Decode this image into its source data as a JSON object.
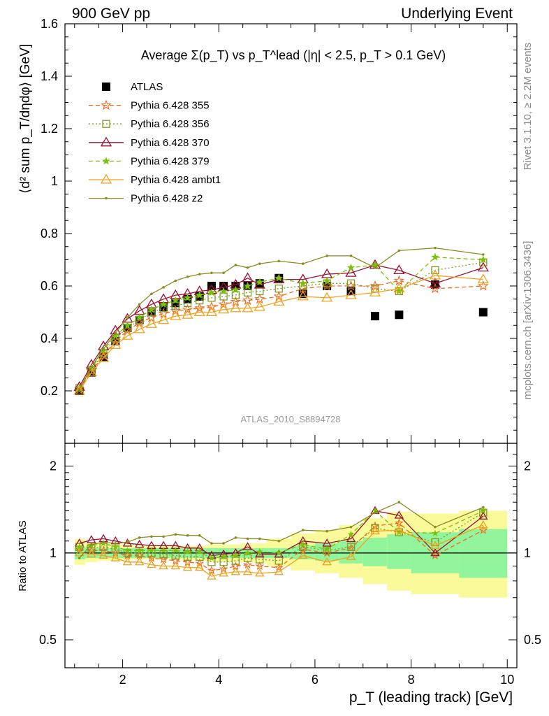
{
  "header": {
    "left": "900 GeV pp",
    "right": "Underlying Event",
    "plot_title": "Average Σ(p_T) vs p_T^lead (|η| < 2.5, p_T > 0.1 GeV)",
    "watermark": "ATLAS_2010_S8894728",
    "side_top": "Rivet 3.1.10, ≥ 2.2M events",
    "side_bottom": "mcplots.cern.ch [arXiv:1306.3436]"
  },
  "chart_data": [
    {
      "type": "scatter",
      "title": "Average Σ(p_T) vs p_T^lead (|η| < 2.5, p_T > 0.1 GeV)",
      "xlabel": "p_T (leading track) [GeV]",
      "ylabel": "⟨d² sum p_T/dηdφ⟩ [GeV]",
      "xlim": [
        0.8,
        10.2
      ],
      "ylim": [
        0,
        1.6
      ],
      "yticks": [
        0.2,
        0.4,
        0.6,
        0.8,
        1,
        1.2,
        1.4,
        1.6
      ],
      "ytick_labels": [
        "0.2",
        "0.4",
        "0.6",
        "0.8",
        "1",
        "1.2",
        "1.4",
        "1.6"
      ],
      "x": [
        1.1,
        1.35,
        1.6,
        1.85,
        2.1,
        2.35,
        2.6,
        2.85,
        3.1,
        3.35,
        3.6,
        3.85,
        4.1,
        4.35,
        4.6,
        4.85,
        5.25,
        5.75,
        6.25,
        6.75,
        7.25,
        7.75,
        8.5,
        9.5
      ],
      "legend_position": "top-left",
      "series": [
        {
          "name": "ATLAS",
          "color": "#000000",
          "marker": "square",
          "line": "none",
          "values": [
            0.2,
            0.27,
            0.33,
            0.39,
            0.44,
            0.47,
            0.5,
            0.52,
            0.535,
            0.55,
            0.56,
            0.6,
            0.6,
            0.6,
            0.6,
            0.61,
            0.63,
            0.57,
            0.6,
            0.58,
            0.485,
            0.49,
            0.605,
            0.5
          ]
        },
        {
          "name": "Pythia 6.428 355",
          "color": "#ee6a1e",
          "marker": "star",
          "line": "dashed",
          "values": [
            0.205,
            0.275,
            0.335,
            0.39,
            0.43,
            0.46,
            0.48,
            0.495,
            0.505,
            0.51,
            0.515,
            0.52,
            0.53,
            0.54,
            0.545,
            0.55,
            0.56,
            0.59,
            0.6,
            0.6,
            0.6,
            0.62,
            0.59,
            0.6
          ]
        },
        {
          "name": "Pythia 6.428 356",
          "color": "#7f9a25",
          "marker": "open-square",
          "line": "dotted",
          "values": [
            0.21,
            0.28,
            0.345,
            0.4,
            0.44,
            0.47,
            0.5,
            0.515,
            0.525,
            0.535,
            0.545,
            0.555,
            0.56,
            0.565,
            0.575,
            0.58,
            0.59,
            0.6,
            0.61,
            0.61,
            0.59,
            0.58,
            0.66,
            0.69
          ]
        },
        {
          "name": "Pythia 6.428 370",
          "color": "#9b1030",
          "marker": "open-triangle",
          "line": "solid",
          "values": [
            0.215,
            0.3,
            0.37,
            0.43,
            0.475,
            0.505,
            0.53,
            0.55,
            0.565,
            0.57,
            0.58,
            0.585,
            0.595,
            0.605,
            0.63,
            0.605,
            0.625,
            0.625,
            0.645,
            0.65,
            0.68,
            0.66,
            0.61,
            0.67
          ]
        },
        {
          "name": "Pythia 6.428 379",
          "color": "#7ac10a",
          "marker": "small-star",
          "line": "dashed",
          "values": [
            0.21,
            0.285,
            0.355,
            0.41,
            0.45,
            0.48,
            0.51,
            0.53,
            0.545,
            0.555,
            0.565,
            0.575,
            0.58,
            0.585,
            0.6,
            0.615,
            0.63,
            0.61,
            0.62,
            0.67,
            0.68,
            0.58,
            0.71,
            0.7
          ]
        },
        {
          "name": "Pythia 6.428 ambt1",
          "color": "#f2a21c",
          "marker": "open-triangle",
          "line": "solid",
          "values": [
            0.2,
            0.27,
            0.325,
            0.375,
            0.41,
            0.435,
            0.455,
            0.47,
            0.485,
            0.49,
            0.5,
            0.5,
            0.51,
            0.515,
            0.515,
            0.52,
            0.54,
            0.56,
            0.555,
            0.565,
            0.575,
            0.59,
            0.64,
            0.625
          ]
        },
        {
          "name": "Pythia 6.428 z2",
          "color": "#8b8b1e",
          "marker": "dot",
          "line": "solid",
          "values": [
            0.205,
            0.29,
            0.36,
            0.42,
            0.48,
            0.53,
            0.57,
            0.595,
            0.62,
            0.635,
            0.645,
            0.65,
            0.65,
            0.68,
            0.67,
            0.685,
            0.695,
            0.685,
            0.715,
            0.715,
            0.67,
            0.735,
            0.745,
            0.72
          ]
        }
      ]
    },
    {
      "type": "line",
      "ylabel": "Ratio to ATLAS",
      "xlabel": "p_T (leading track) [GeV]",
      "xlim": [
        0.8,
        10.2
      ],
      "ylim": [
        0.4,
        2.4
      ],
      "y_scale": "log",
      "xticks": [
        2,
        4,
        6,
        8,
        10
      ],
      "xtick_labels": [
        "2",
        "4",
        "6",
        "8",
        "10"
      ],
      "yticks": [
        0.5,
        1,
        2
      ],
      "ytick_labels": [
        "0.5",
        "1",
        "2"
      ],
      "bands": {
        "edges": [
          1.0,
          1.225,
          1.475,
          1.725,
          1.975,
          2.225,
          2.475,
          2.725,
          2.975,
          3.225,
          3.475,
          3.725,
          3.975,
          4.225,
          4.475,
          4.725,
          5.0,
          5.5,
          6.0,
          6.5,
          7.0,
          7.5,
          8.0,
          9.0,
          10.0
        ],
        "inner": [
          [
            0.95,
            1.05
          ],
          [
            0.96,
            1.04
          ],
          [
            0.96,
            1.04
          ],
          [
            0.96,
            1.04
          ],
          [
            0.96,
            1.04
          ],
          [
            0.96,
            1.04
          ],
          [
            0.96,
            1.04
          ],
          [
            0.96,
            1.04
          ],
          [
            0.96,
            1.04
          ],
          [
            0.96,
            1.04
          ],
          [
            0.96,
            1.04
          ],
          [
            0.96,
            1.04
          ],
          [
            0.96,
            1.04
          ],
          [
            0.96,
            1.04
          ],
          [
            0.96,
            1.04
          ],
          [
            0.96,
            1.04
          ],
          [
            0.96,
            1.04
          ],
          [
            0.95,
            1.06
          ],
          [
            0.94,
            1.08
          ],
          [
            0.92,
            1.1
          ],
          [
            0.9,
            1.13
          ],
          [
            0.88,
            1.16
          ],
          [
            0.85,
            1.18
          ],
          [
            0.82,
            1.21
          ]
        ],
        "outer": [
          [
            0.91,
            1.12
          ],
          [
            0.93,
            1.09
          ],
          [
            0.94,
            1.08
          ],
          [
            0.94,
            1.07
          ],
          [
            0.95,
            1.07
          ],
          [
            0.95,
            1.06
          ],
          [
            0.95,
            1.06
          ],
          [
            0.95,
            1.06
          ],
          [
            0.95,
            1.06
          ],
          [
            0.94,
            1.06
          ],
          [
            0.94,
            1.06
          ],
          [
            0.93,
            1.07
          ],
          [
            0.93,
            1.07
          ],
          [
            0.93,
            1.07
          ],
          [
            0.93,
            1.08
          ],
          [
            0.92,
            1.08
          ],
          [
            0.9,
            1.12
          ],
          [
            0.87,
            1.17
          ],
          [
            0.85,
            1.2
          ],
          [
            0.82,
            1.25
          ],
          [
            0.78,
            1.32
          ],
          [
            0.74,
            1.39
          ],
          [
            0.72,
            1.37
          ],
          [
            0.7,
            1.4
          ]
        ]
      },
      "series": [
        {
          "name": "Pythia 6.428 355",
          "color": "#ee6a1e",
          "values": [
            1.03,
            1.02,
            1.02,
            1.0,
            0.98,
            0.98,
            0.96,
            0.95,
            0.94,
            0.93,
            0.92,
            0.87,
            0.88,
            0.9,
            0.91,
            0.9,
            0.89,
            1.03,
            1.0,
            1.04,
            1.24,
            1.27,
            0.98,
            1.2
          ]
        },
        {
          "name": "Pythia 6.428 356",
          "color": "#7f9a25",
          "values": [
            1.05,
            1.04,
            1.05,
            1.03,
            1.0,
            1.0,
            1.0,
            0.99,
            0.98,
            0.97,
            0.97,
            0.93,
            0.93,
            0.94,
            0.96,
            0.95,
            0.94,
            1.05,
            1.02,
            1.05,
            1.22,
            1.18,
            1.09,
            1.38
          ]
        },
        {
          "name": "Pythia 6.428 370",
          "color": "#9b1030",
          "values": [
            1.08,
            1.11,
            1.12,
            1.1,
            1.08,
            1.07,
            1.06,
            1.06,
            1.06,
            1.04,
            1.04,
            0.98,
            0.99,
            1.0,
            1.05,
            0.99,
            0.99,
            1.1,
            1.08,
            1.12,
            1.4,
            1.35,
            1.0,
            1.34
          ]
        },
        {
          "name": "Pythia 6.428 379",
          "color": "#7ac10a",
          "values": [
            1.05,
            1.06,
            1.08,
            1.05,
            1.02,
            1.02,
            1.02,
            1.02,
            1.02,
            1.01,
            1.01,
            0.96,
            0.97,
            0.98,
            1.0,
            1.01,
            1.0,
            1.07,
            1.03,
            1.16,
            1.4,
            1.18,
            1.17,
            1.4
          ]
        },
        {
          "name": "Pythia 6.428 ambt1",
          "color": "#f2a21c",
          "values": [
            1.0,
            0.99,
            0.98,
            0.96,
            0.93,
            0.93,
            0.91,
            0.9,
            0.9,
            0.89,
            0.89,
            0.83,
            0.85,
            0.86,
            0.86,
            0.85,
            0.86,
            0.98,
            0.93,
            0.97,
            1.19,
            1.2,
            1.06,
            1.25
          ]
        },
        {
          "name": "Pythia 6.428 z2",
          "color": "#8b8b1e",
          "values": [
            0.96,
            1.07,
            1.09,
            1.08,
            1.09,
            1.13,
            1.14,
            1.14,
            1.16,
            1.15,
            1.15,
            1.08,
            1.08,
            1.13,
            1.12,
            1.12,
            1.1,
            1.2,
            1.19,
            1.23,
            1.38,
            1.5,
            1.23,
            1.44
          ]
        }
      ]
    }
  ]
}
